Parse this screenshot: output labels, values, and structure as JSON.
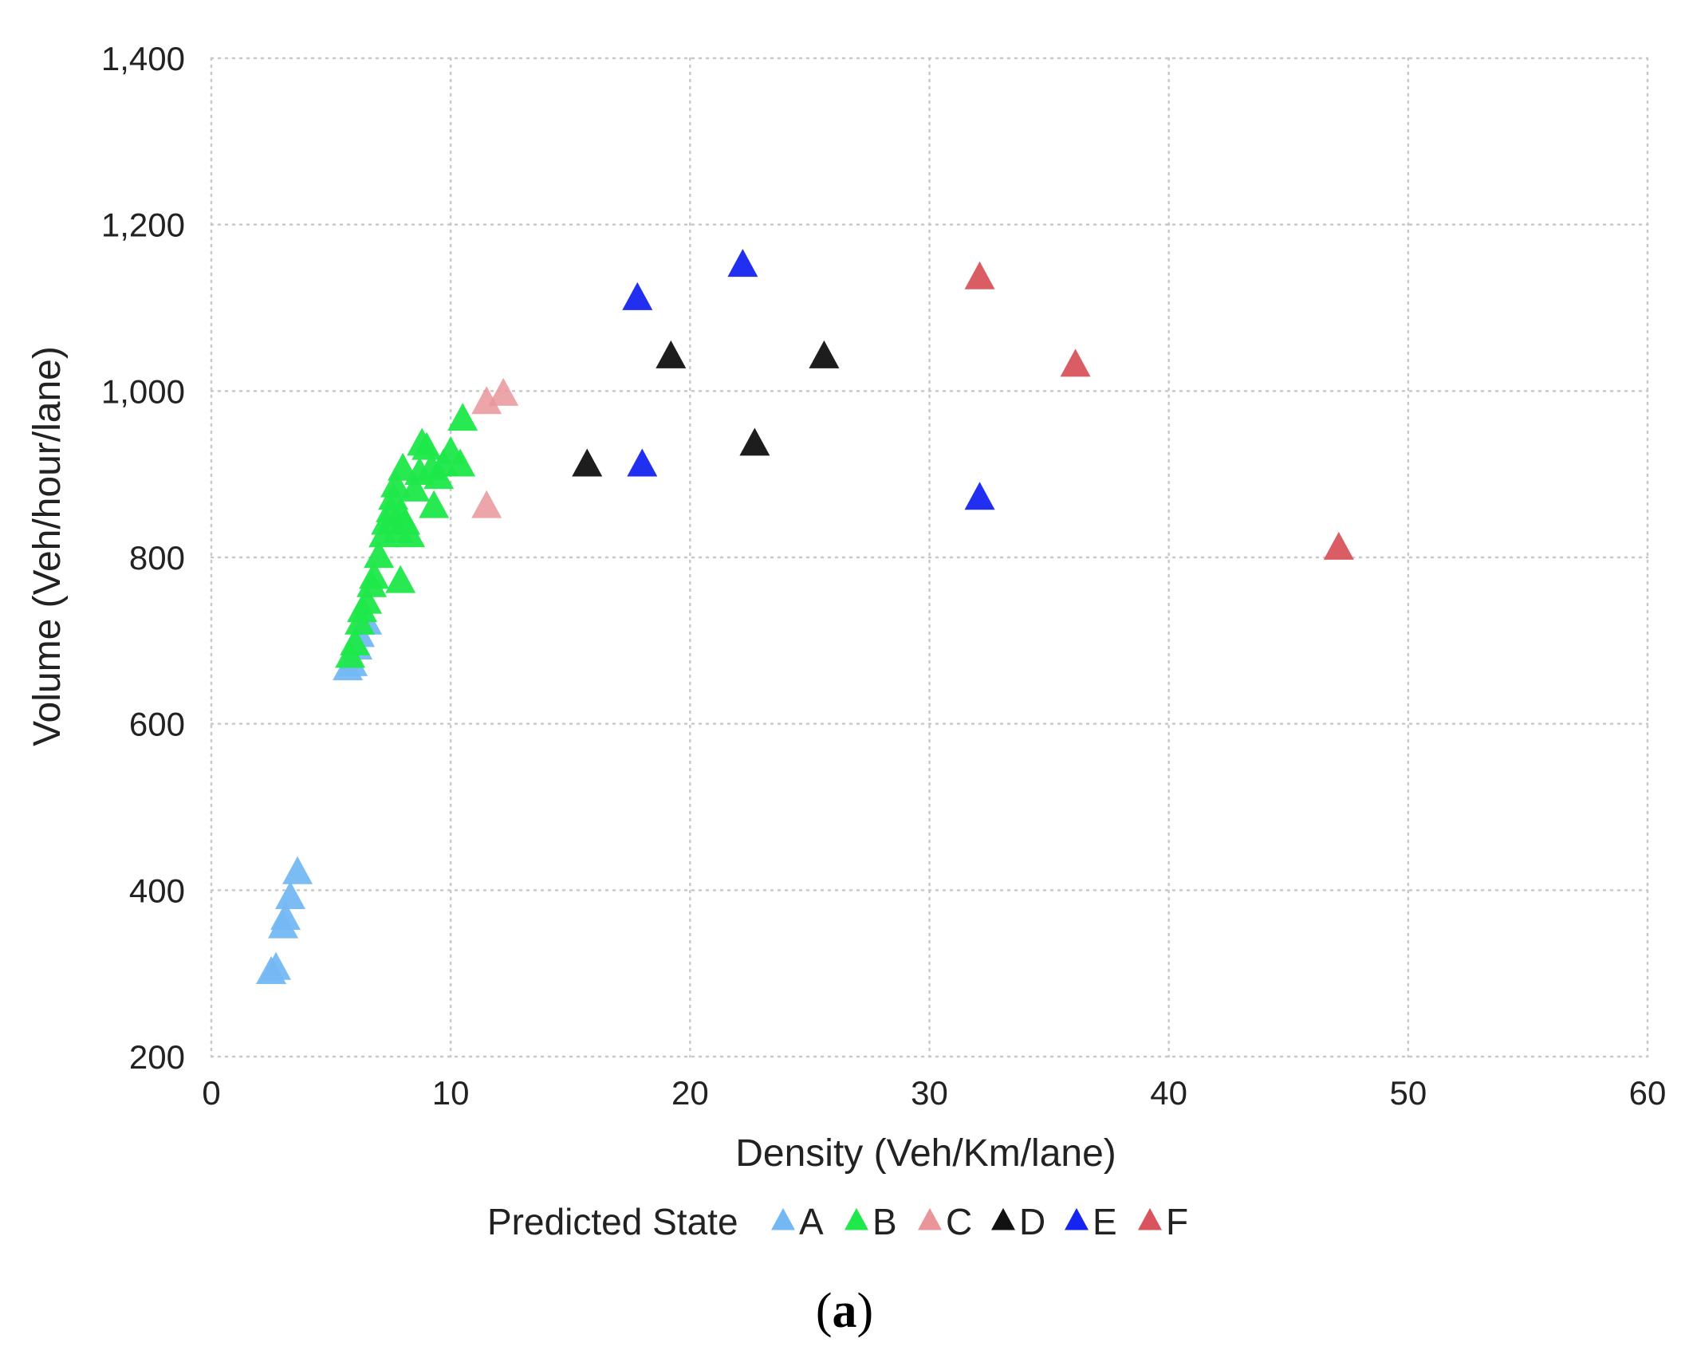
{
  "chart_data": {
    "type": "scatter",
    "title": "",
    "xlabel": "Density (Veh/Km/lane)",
    "ylabel": "Volume (Veh/hour/lane)",
    "xlim": [
      0,
      60
    ],
    "ylim": [
      200,
      1400
    ],
    "x_ticks": [
      0,
      10,
      20,
      30,
      40,
      50,
      60
    ],
    "y_ticks": [
      200,
      400,
      600,
      800,
      1000,
      1200,
      1400
    ],
    "x_tick_labels": [
      "0",
      "10",
      "20",
      "30",
      "40",
      "50",
      "60"
    ],
    "y_tick_labels": [
      "200",
      "400",
      "600",
      "800",
      "1,000",
      "1,200",
      "1,400"
    ],
    "grid": "dotted",
    "legend_title": "Predicted State",
    "legend_position": "bottom",
    "marker": "triangle",
    "series": [
      {
        "name": "A",
        "color": "#74b8f3",
        "points": [
          [
            2.5,
            300
          ],
          [
            2.7,
            305
          ],
          [
            3.0,
            355
          ],
          [
            3.1,
            365
          ],
          [
            3.3,
            390
          ],
          [
            3.6,
            420
          ],
          [
            5.7,
            665
          ],
          [
            5.9,
            670
          ],
          [
            6.1,
            690
          ],
          [
            6.2,
            705
          ],
          [
            6.5,
            720
          ]
        ]
      },
      {
        "name": "B",
        "color": "#1ee84a",
        "points": [
          [
            5.8,
            680
          ],
          [
            6.0,
            695
          ],
          [
            6.2,
            720
          ],
          [
            6.3,
            735
          ],
          [
            6.5,
            745
          ],
          [
            6.7,
            765
          ],
          [
            6.8,
            775
          ],
          [
            7.0,
            800
          ],
          [
            7.2,
            825
          ],
          [
            7.3,
            840
          ],
          [
            7.5,
            855
          ],
          [
            7.6,
            870
          ],
          [
            7.7,
            885
          ],
          [
            7.8,
            830
          ],
          [
            7.9,
            850
          ],
          [
            8.0,
            905
          ],
          [
            8.1,
            840
          ],
          [
            8.3,
            825
          ],
          [
            8.5,
            880
          ],
          [
            8.7,
            900
          ],
          [
            8.8,
            935
          ],
          [
            9.0,
            930
          ],
          [
            9.2,
            905
          ],
          [
            9.3,
            860
          ],
          [
            9.5,
            895
          ],
          [
            9.7,
            910
          ],
          [
            10.0,
            925
          ],
          [
            10.4,
            910
          ],
          [
            10.5,
            965
          ],
          [
            7.9,
            770
          ]
        ]
      },
      {
        "name": "C",
        "color": "#e9959a",
        "points": [
          [
            11.5,
            985
          ],
          [
            12.2,
            995
          ],
          [
            11.5,
            860
          ]
        ]
      },
      {
        "name": "D",
        "color": "#111111",
        "points": [
          [
            15.7,
            910
          ],
          [
            19.2,
            1040
          ],
          [
            22.7,
            935
          ],
          [
            25.6,
            1040
          ]
        ]
      },
      {
        "name": "E",
        "color": "#1524f0",
        "points": [
          [
            17.8,
            1110
          ],
          [
            18.0,
            910
          ],
          [
            22.2,
            1150
          ],
          [
            32.1,
            870
          ]
        ]
      },
      {
        "name": "F",
        "color": "#d9545c",
        "points": [
          [
            32.1,
            1135
          ],
          [
            36.1,
            1030
          ],
          [
            47.1,
            810
          ]
        ]
      }
    ]
  },
  "caption": {
    "open": "(",
    "letter": "a",
    "close": ")"
  }
}
